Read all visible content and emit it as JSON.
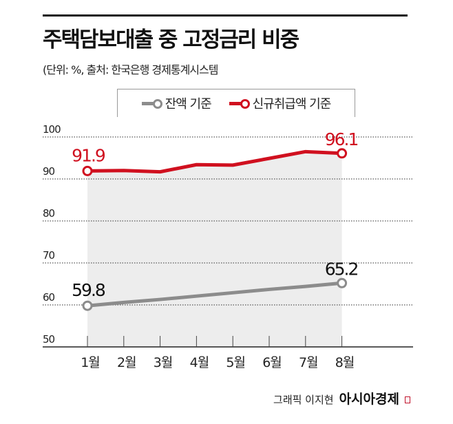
{
  "chart_data": {
    "type": "line",
    "title": "주택담보대출 중 고정금리 비중",
    "subtitle": "(단위: %, 출처: 한국은행 경제통계시스템",
    "categories": [
      "1월",
      "2월",
      "3월",
      "4월",
      "5월",
      "6월",
      "7월",
      "8월"
    ],
    "series": [
      {
        "name": "잔액 기준",
        "color": "#8c8c8c",
        "values": [
          59.8,
          60.6,
          61.3,
          62.1,
          62.9,
          63.7,
          64.4,
          65.2
        ],
        "labels": {
          "first": "59.8",
          "last": "65.2"
        }
      },
      {
        "name": "신규취급액 기준",
        "color": "#d0101f",
        "values": [
          91.9,
          92.0,
          91.7,
          93.4,
          93.3,
          94.9,
          96.5,
          96.1
        ],
        "labels": {
          "first": "91.9",
          "last": "96.1"
        }
      }
    ],
    "yticks": [
      "50",
      "60",
      "70",
      "80",
      "90",
      "100"
    ],
    "ylim": [
      50,
      100
    ],
    "grid": true,
    "legend": "top-center",
    "credit": "그래픽 이지현",
    "brand": "아시아경제"
  }
}
